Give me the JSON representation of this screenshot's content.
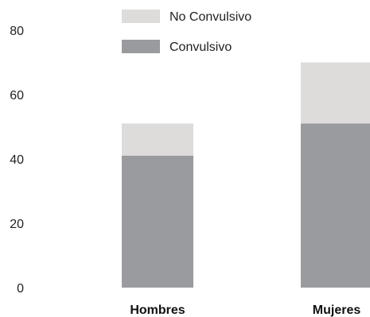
{
  "chart_data": {
    "type": "bar",
    "stacked": true,
    "categories": [
      "Hombres",
      "Mujeres"
    ],
    "series": [
      {
        "name": "Convulsivo",
        "values": [
          41,
          51
        ],
        "color": "#9a9b9e"
      },
      {
        "name": "No Convulsivo",
        "values": [
          10,
          19
        ],
        "color": "#dddcdb"
      }
    ],
    "yticks": [
      "0",
      "20",
      "40",
      "60",
      "80"
    ],
    "ylim": [
      0,
      80
    ],
    "grid": false,
    "legend_position": "top"
  }
}
